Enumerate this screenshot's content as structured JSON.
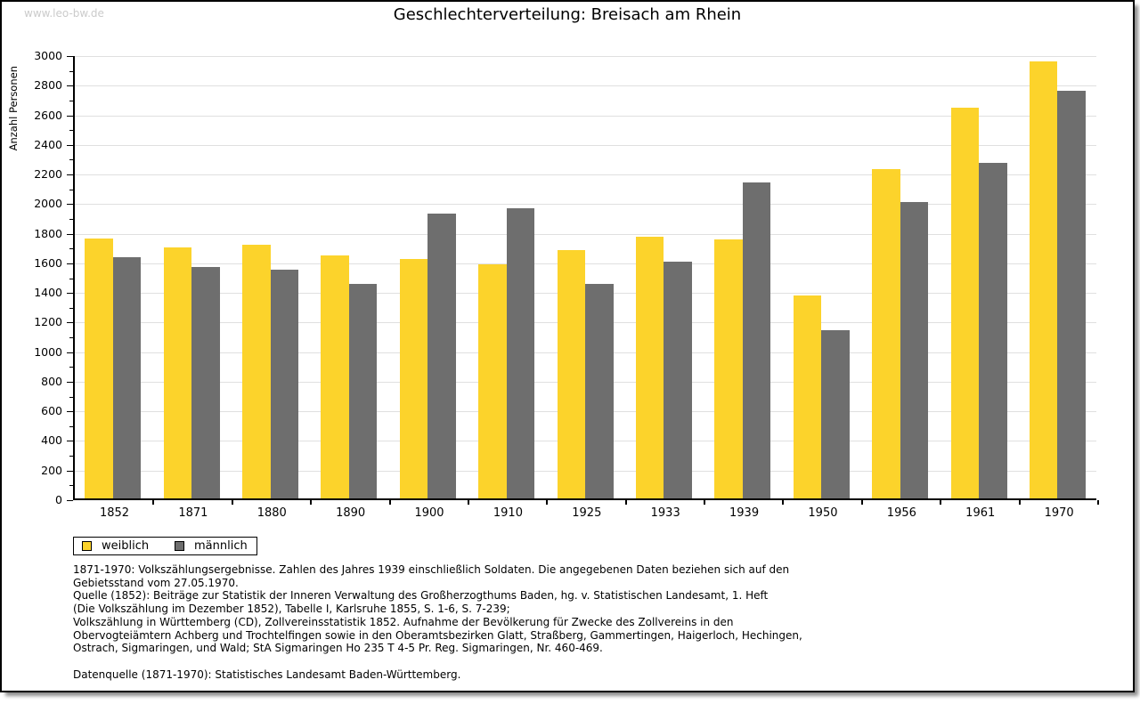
{
  "watermark": "www.leo-bw.de",
  "title": "Geschlechterverteilung: Breisach am Rhein",
  "chart_data": {
    "type": "bar",
    "title": "Geschlechterverteilung: Breisach am Rhein",
    "xlabel": "",
    "ylabel": "Anzahl Personen",
    "ylim": [
      0,
      3000
    ],
    "ytick_step": 200,
    "ytick_minor_step": 100,
    "grid": true,
    "legend_position": "bottom-left",
    "categories": [
      "1852",
      "1871",
      "1880",
      "1890",
      "1900",
      "1910",
      "1925",
      "1933",
      "1939",
      "1950",
      "1956",
      "1961",
      "1970"
    ],
    "series": [
      {
        "name": "weiblich",
        "color": "#FCD32B",
        "values": [
          1755,
          1695,
          1715,
          1640,
          1620,
          1580,
          1675,
          1765,
          1750,
          1370,
          2225,
          2640,
          2950
        ]
      },
      {
        "name": "männlich",
        "color": "#6E6E6E",
        "values": [
          1630,
          1565,
          1545,
          1450,
          1925,
          1960,
          1450,
          1600,
          2135,
          1135,
          2000,
          2265,
          2755
        ]
      }
    ]
  },
  "colors": {
    "weiblich": "#FCD32B",
    "maennlich": "#6E6E6E",
    "gridline": "#e0e0e0",
    "watermark": "#cbcbcb"
  },
  "footnote": {
    "lines": [
      "1871-1970: Volkszählungsergebnisse. Zahlen des Jahres 1939 einschließlich Soldaten. Die angegebenen Daten beziehen sich auf den",
      "Gebietsstand vom 27.05.1970.",
      "Quelle (1852): Beiträge zur Statistik der Inneren Verwaltung des Großherzogthums Baden, hg. v. Statistischen Landesamt, 1. Heft",
      "(Die Volkszählung im Dezember 1852), Tabelle I, Karlsruhe 1855, S. 1-6, S. 7-239;",
      "Volkszählung in Württemberg (CD), Zollvereinsstatistik 1852. Aufnahme der Bevölkerung für Zwecke des Zollvereins in den",
      "Obervogteiämtern Achberg und Trochtelfingen sowie in den Oberamtsbezirken Glatt, Straßberg, Gammertingen, Haigerloch, Hechingen,",
      "Ostrach, Sigmaringen, und Wald; StA Sigmaringen Ho 235 T 4-5 Pr. Reg. Sigmaringen, Nr. 460-469.",
      "",
      "Datenquelle (1871-1970): Statistisches Landesamt Baden-Württemberg."
    ]
  }
}
